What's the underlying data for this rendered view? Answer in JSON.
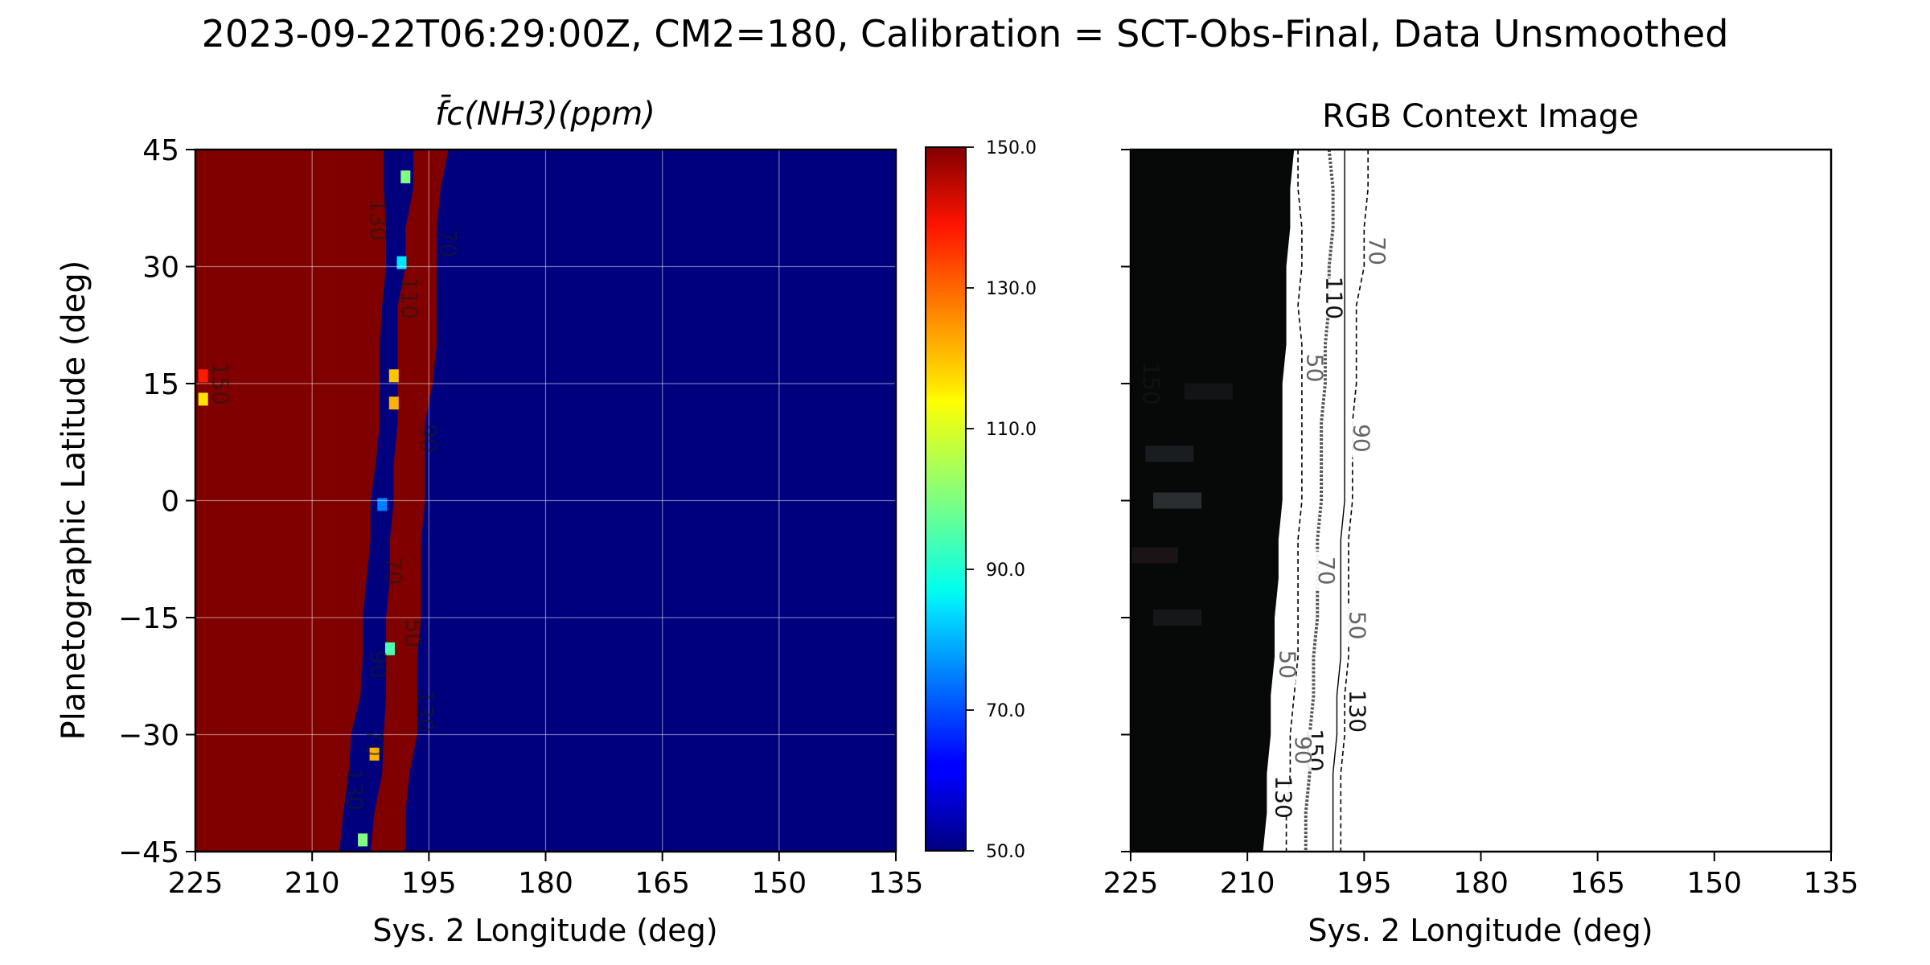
{
  "figure": {
    "suptitle": "2023-09-22T06:29:00Z, CM2=180, Calibration = SCT-Obs-Final, Data Unsmoothed"
  },
  "colors": {
    "high_region": "#800000",
    "low_region": "#00007f",
    "rgb_dark": "#070909",
    "contour_line": "#000000"
  },
  "chart_data": [
    {
      "type": "heatmap",
      "title": "f̄c(NH3)(ppm)",
      "xlabel": "Sys. 2 Longitude (deg)",
      "ylabel": "Planetographic Latitude (deg)",
      "xlim": [
        225,
        135
      ],
      "ylim": [
        -45,
        45
      ],
      "xticks": [
        "225",
        "210",
        "195",
        "180",
        "165",
        "150",
        "135"
      ],
      "yticks": [
        "45",
        "30",
        "15",
        "0",
        "−15",
        "−30",
        "−45"
      ],
      "grid": true,
      "colorbar": {
        "colormap": "jet",
        "range": [
          50,
          150
        ],
        "ticks": [
          "150.0",
          "130.0",
          "110.0",
          "90.0",
          "70.0",
          "50.0"
        ]
      },
      "value_high": 150,
      "value_low": 50,
      "high_region_west": {
        "lat": [
          45,
          40,
          35,
          30,
          25,
          20,
          15,
          10,
          5,
          0,
          -5,
          -10,
          -15,
          -20,
          -25,
          -30,
          -35,
          -40,
          -45
        ],
        "east_edge_lon": [
          200.8,
          200.8,
          200.5,
          200.5,
          201,
          201.3,
          201.3,
          201.3,
          201.8,
          202.5,
          202.5,
          203,
          203.5,
          203.5,
          203.8,
          205,
          205.3,
          206,
          206.5
        ]
      },
      "high_region_east_strip": {
        "lat": [
          45,
          40,
          35,
          30,
          25,
          20,
          15,
          10,
          5,
          0,
          -5,
          -10,
          -15,
          -20,
          -25,
          -30,
          -35,
          -40,
          -45
        ],
        "west_edge_lon": [
          197,
          197,
          198,
          198,
          199,
          199,
          199,
          199,
          199.5,
          199.5,
          200,
          200,
          200.5,
          200.5,
          200.5,
          200.8,
          201,
          202,
          202.5
        ],
        "east_edge_lon": [
          192.5,
          193.5,
          194,
          194,
          194,
          194,
          194.5,
          195.5,
          195.5,
          195.5,
          196,
          196,
          196,
          196.5,
          196.5,
          196.5,
          197.5,
          198,
          198
        ]
      },
      "hotspots": [
        {
          "lon": 224,
          "lat": 16,
          "value": 135
        },
        {
          "lon": 224,
          "lat": 13,
          "value": 115
        },
        {
          "lon": 198,
          "lat": 41.5,
          "value": 100
        },
        {
          "lon": 198.5,
          "lat": 30.5,
          "value": 85
        },
        {
          "lon": 199.5,
          "lat": 16,
          "value": 118
        },
        {
          "lon": 199.5,
          "lat": 12.5,
          "value": 120
        },
        {
          "lon": 201,
          "lat": -0.5,
          "value": 75
        },
        {
          "lon": 200,
          "lat": -19,
          "value": 95
        },
        {
          "lon": 202,
          "lat": -32.5,
          "value": 120
        },
        {
          "lon": 203.5,
          "lat": -43.5,
          "value": 100
        }
      ],
      "contour_labels": [
        "110",
        "150",
        "90",
        "70",
        "130",
        "50"
      ]
    },
    {
      "type": "image",
      "title": "RGB Context Image",
      "xlabel": "Sys. 2 Longitude (deg)",
      "xlim": [
        225,
        135
      ],
      "ylim": [
        -45,
        45
      ],
      "xticks": [
        "225",
        "210",
        "195",
        "180",
        "165",
        "150",
        "135"
      ],
      "image_east_edge": {
        "lat": [
          45,
          40,
          35,
          30,
          25,
          20,
          15,
          10,
          5,
          0,
          -5,
          -10,
          -15,
          -20,
          -25,
          -30,
          -35,
          -40,
          -45
        ],
        "lon": [
          204,
          204.5,
          204.5,
          205,
          205,
          205,
          205.5,
          205.5,
          205.5,
          205.5,
          206,
          206,
          206.5,
          206.5,
          207,
          207,
          207.5,
          207.5,
          208
        ]
      },
      "contours": [
        {
          "level": 70,
          "style": "dashed",
          "lat": [
            45,
            40,
            35,
            30,
            25,
            20,
            15,
            10,
            5,
            0,
            -5,
            -10,
            -15,
            -20,
            -25,
            -30,
            -35,
            -40,
            -45
          ],
          "lon": [
            194.5,
            194.5,
            195,
            195,
            196,
            196,
            196,
            196.5,
            196.5,
            196.5,
            197,
            197,
            197,
            197,
            197.5,
            197.5,
            198,
            198,
            198
          ]
        },
        {
          "level": 90,
          "style": "dotted-thick",
          "lat": [
            45,
            40,
            35,
            30,
            25,
            20,
            15,
            10,
            5,
            0,
            -5,
            -10,
            -15,
            -20,
            -25,
            -30,
            -35,
            -40,
            -45
          ],
          "lon": [
            199.5,
            199,
            199,
            199.5,
            199.5,
            200,
            200,
            200.5,
            200.5,
            200.5,
            201,
            201,
            201,
            201.5,
            201.5,
            202,
            202,
            202.5,
            202.5
          ]
        },
        {
          "level": 110,
          "style": "solid-thin",
          "lat": [
            45,
            40,
            35,
            30,
            25,
            20,
            15,
            10,
            5,
            0,
            -5,
            -10,
            -15,
            -20,
            -25,
            -30,
            -35,
            -40,
            -45
          ],
          "lon": [
            197.5,
            197.5,
            197.5,
            197.5,
            197.5,
            197.5,
            197.5,
            197.5,
            197.5,
            197.5,
            198,
            198,
            198,
            198,
            198.5,
            198.5,
            199,
            199,
            199
          ]
        },
        {
          "level": 130,
          "style": "dashed",
          "lat": [
            45,
            40,
            35,
            30,
            25,
            20,
            15,
            10,
            5,
            0,
            -5,
            -10,
            -15,
            -20,
            -25,
            -30,
            -35,
            -40,
            -45
          ],
          "lon": [
            203.5,
            203.5,
            203,
            203,
            203.5,
            203,
            203,
            203,
            203,
            203,
            203.5,
            203.5,
            203.5,
            203.5,
            204,
            204.5,
            204.5,
            205,
            205
          ]
        }
      ],
      "contour_labels": [
        {
          "text": "70",
          "lon": 193.5,
          "lat": 32,
          "gray": true
        },
        {
          "text": "110",
          "lon": 199,
          "lat": 26,
          "gray": false
        },
        {
          "text": "50",
          "lon": 201.5,
          "lat": 17,
          "gray": true
        },
        {
          "text": "90",
          "lon": 195.5,
          "lat": 8,
          "gray": true
        },
        {
          "text": "70",
          "lon": 200,
          "lat": -9,
          "gray": true
        },
        {
          "text": "50",
          "lon": 196,
          "lat": -16,
          "gray": true
        },
        {
          "text": "50",
          "lon": 205,
          "lat": -21,
          "gray": true
        },
        {
          "text": "130",
          "lon": 196,
          "lat": -27,
          "gray": false
        },
        {
          "text": "150",
          "lon": 201.5,
          "lat": -32,
          "gray": false
        },
        {
          "text": "90",
          "lon": 203,
          "lat": -32,
          "gray": true
        },
        {
          "text": "130",
          "lon": 205.5,
          "lat": -38,
          "gray": false
        },
        {
          "text": "150",
          "lon": 222.5,
          "lat": 15,
          "gray": false
        }
      ]
    }
  ]
}
